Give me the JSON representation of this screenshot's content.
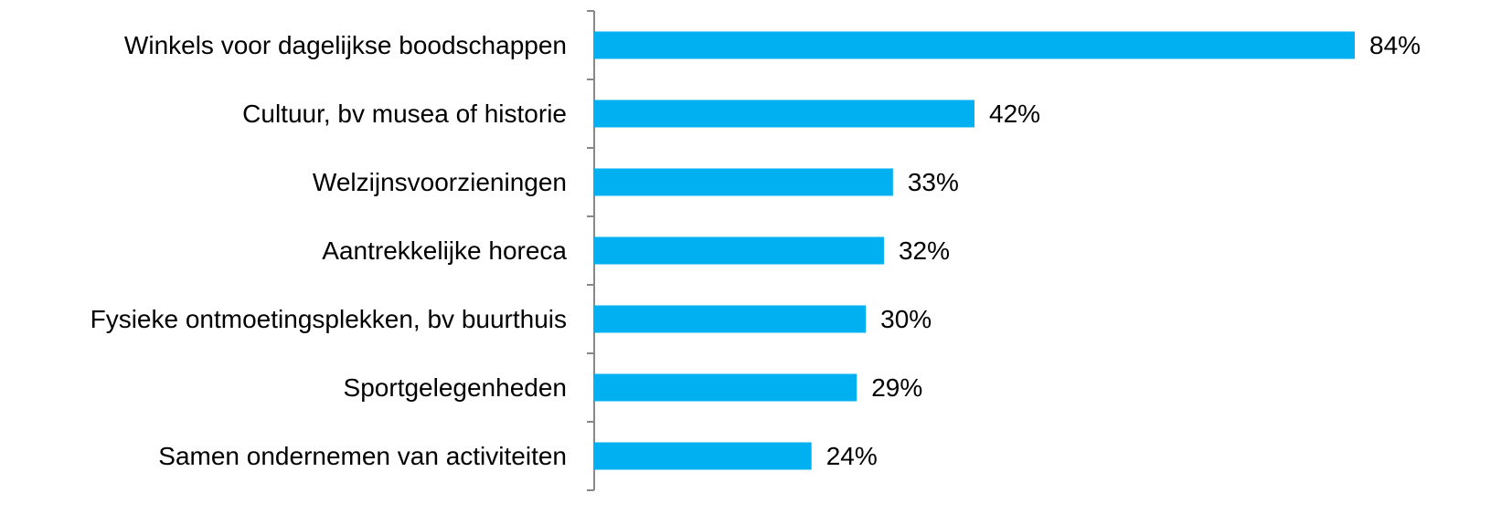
{
  "chart_data": {
    "type": "bar",
    "orientation": "horizontal",
    "categories": [
      "Winkels voor dagelijkse boodschappen",
      "Cultuur, bv musea of historie",
      "Welzijnsvoorzieningen",
      "Aantrekkelijke horeca",
      "Fysieke ontmoetingsplekken, bv buurthuis",
      "Sportgelegenheden",
      "Samen ondernemen van activiteiten"
    ],
    "values": [
      84,
      42,
      33,
      32,
      30,
      29,
      24
    ],
    "value_labels": [
      "84%",
      "42%",
      "33%",
      "32%",
      "30%",
      "29%",
      "24%"
    ],
    "color": "#00b0f0"
  }
}
